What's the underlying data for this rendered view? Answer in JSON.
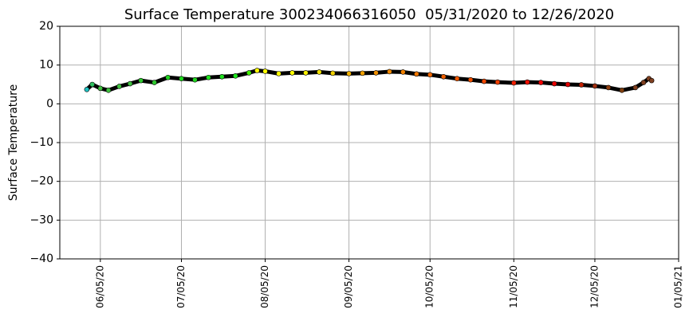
{
  "chart_data": {
    "type": "scatter-line",
    "title": "Surface Temperature 300234066316050  05/31/2020 to 12/26/2020",
    "ylabel": "Surface Temperature",
    "x": [
      "05/31/20",
      "06/02/20",
      "06/05/20",
      "06/08/20",
      "06/12/20",
      "06/16/20",
      "06/20/20",
      "06/25/20",
      "06/30/20",
      "07/05/20",
      "07/10/20",
      "07/15/20",
      "07/20/20",
      "07/25/20",
      "07/30/20",
      "08/02/20",
      "08/05/20",
      "08/10/20",
      "08/15/20",
      "08/20/20",
      "08/25/20",
      "08/30/20",
      "09/05/20",
      "09/10/20",
      "09/15/20",
      "09/20/20",
      "09/25/20",
      "09/30/20",
      "10/05/20",
      "10/10/20",
      "10/15/20",
      "10/20/20",
      "10/25/20",
      "10/30/20",
      "11/05/20",
      "11/10/20",
      "11/15/20",
      "11/20/20",
      "11/25/20",
      "11/30/20",
      "12/05/20",
      "12/10/20",
      "12/15/20",
      "12/20/20",
      "12/23/20",
      "12/25/20",
      "12/26/20"
    ],
    "values": [
      3.7,
      5.0,
      4.0,
      3.5,
      4.5,
      5.2,
      6.0,
      5.5,
      6.8,
      6.5,
      6.2,
      6.8,
      7.0,
      7.2,
      8.0,
      8.6,
      8.4,
      7.8,
      8.0,
      8.0,
      8.2,
      7.9,
      7.8,
      7.9,
      8.0,
      8.3,
      8.2,
      7.7,
      7.5,
      7.0,
      6.5,
      6.2,
      5.8,
      5.6,
      5.4,
      5.6,
      5.5,
      5.2,
      5.0,
      4.9,
      4.6,
      4.2,
      3.5,
      4.2,
      5.5,
      6.5,
      6.0
    ],
    "colors": [
      "#20c0c0",
      "#30c060",
      "#40c040",
      "#40c040",
      "#40c040",
      "#40c040",
      "#30c830",
      "#30c830",
      "#20d020",
      "#20d820",
      "#20d820",
      "#20e020",
      "#20e020",
      "#20e820",
      "#40f000",
      "#ffff00",
      "#ffff00",
      "#ffff00",
      "#ffff00",
      "#f8f000",
      "#f0e000",
      "#f0d000",
      "#f0b000",
      "#f0a000",
      "#f09000",
      "#f08800",
      "#f08000",
      "#f07800",
      "#f06800",
      "#f06000",
      "#f05800",
      "#f05000",
      "#f04800",
      "#f04000",
      "#f02000",
      "#f01000",
      "#f00000",
      "#e80000",
      "#e00000",
      "#c02000",
      "#a03010",
      "#904010",
      "#804010",
      "#804020",
      "#804020",
      "#804020",
      "#804020"
    ],
    "xlim": [
      "05/21/20",
      "01/05/21"
    ],
    "xticks": [
      "06/05/20",
      "07/05/20",
      "08/05/20",
      "09/05/20",
      "10/05/20",
      "11/05/20",
      "12/05/20",
      "01/05/21"
    ],
    "ylim": [
      -40,
      20
    ],
    "yticks": [
      {
        "value": -40,
        "label": "−40"
      },
      {
        "value": -30,
        "label": "−30"
      },
      {
        "value": -20,
        "label": "−20"
      },
      {
        "value": -10,
        "label": "−10"
      },
      0,
      10,
      20
    ],
    "grid": true
  }
}
